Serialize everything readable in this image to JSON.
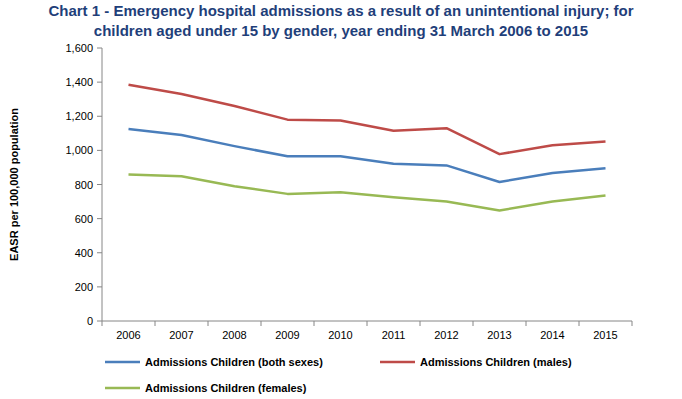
{
  "chart_data": {
    "type": "line",
    "title": "Chart 1 - Emergency hospital admissions as a result of an unintentional injury; for children aged under 15 by gender, year ending 31 March 2006 to 2015",
    "y_label": "EASR per 100,000 population",
    "categories": [
      "2006",
      "2007",
      "2008",
      "2009",
      "2010",
      "2011",
      "2012",
      "2013",
      "2014",
      "2015"
    ],
    "series": [
      {
        "name": "Admissions Children (both sexes)",
        "color": "#4a7ebb",
        "values": [
          1125,
          1090,
          1025,
          965,
          965,
          922,
          912,
          815,
          868,
          895
        ]
      },
      {
        "name": "Admissions Children (males)",
        "color": "#be4b48",
        "values": [
          1385,
          1330,
          1260,
          1180,
          1175,
          1115,
          1130,
          978,
          1030,
          1052
        ]
      },
      {
        "name": "Admissions Children (females)",
        "color": "#98b954",
        "values": [
          858,
          848,
          790,
          745,
          755,
          725,
          700,
          648,
          700,
          735
        ]
      }
    ],
    "ylim": [
      0,
      1600
    ],
    "yticks": [
      0,
      200,
      400,
      600,
      800,
      {
        "value": 1000,
        "label": "1,000"
      },
      {
        "value": 1200,
        "label": "1,200"
      },
      {
        "value": 1400,
        "label": "1,400"
      },
      {
        "value": 1600,
        "label": "1,600"
      }
    ],
    "grid": false,
    "legend": "bottom"
  }
}
